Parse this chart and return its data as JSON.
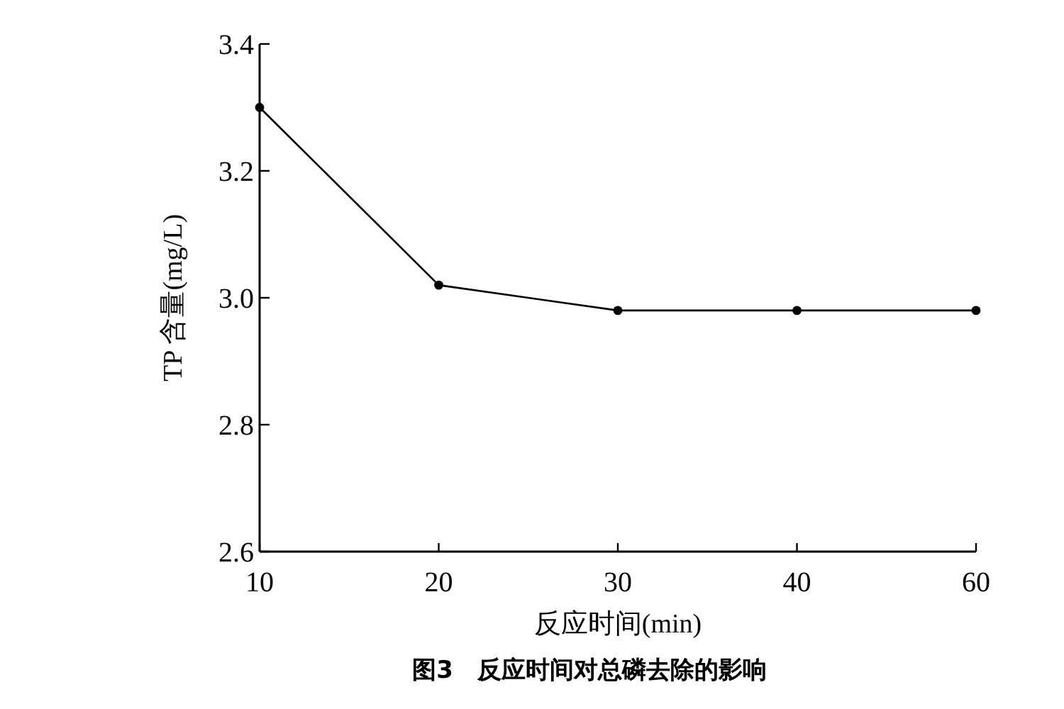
{
  "chart_data": {
    "type": "line",
    "title": "图3　反应时间对总磷去除的影响",
    "xlabel": "反应时间(min)",
    "ylabel": "TP 含量(mg/L)",
    "categories": [
      "10",
      "20",
      "30",
      "40",
      "60"
    ],
    "series": [
      {
        "color": "#000000",
        "values": [
          3.3,
          3.02,
          2.98,
          2.98,
          2.98
        ]
      }
    ],
    "ylim": [
      2.6,
      3.4
    ],
    "yticks": [
      2.6,
      2.8,
      {
        "value": 3.0,
        "label": "3.0"
      },
      3.2,
      3.4
    ],
    "marker": "circle",
    "line_style": "solid"
  }
}
